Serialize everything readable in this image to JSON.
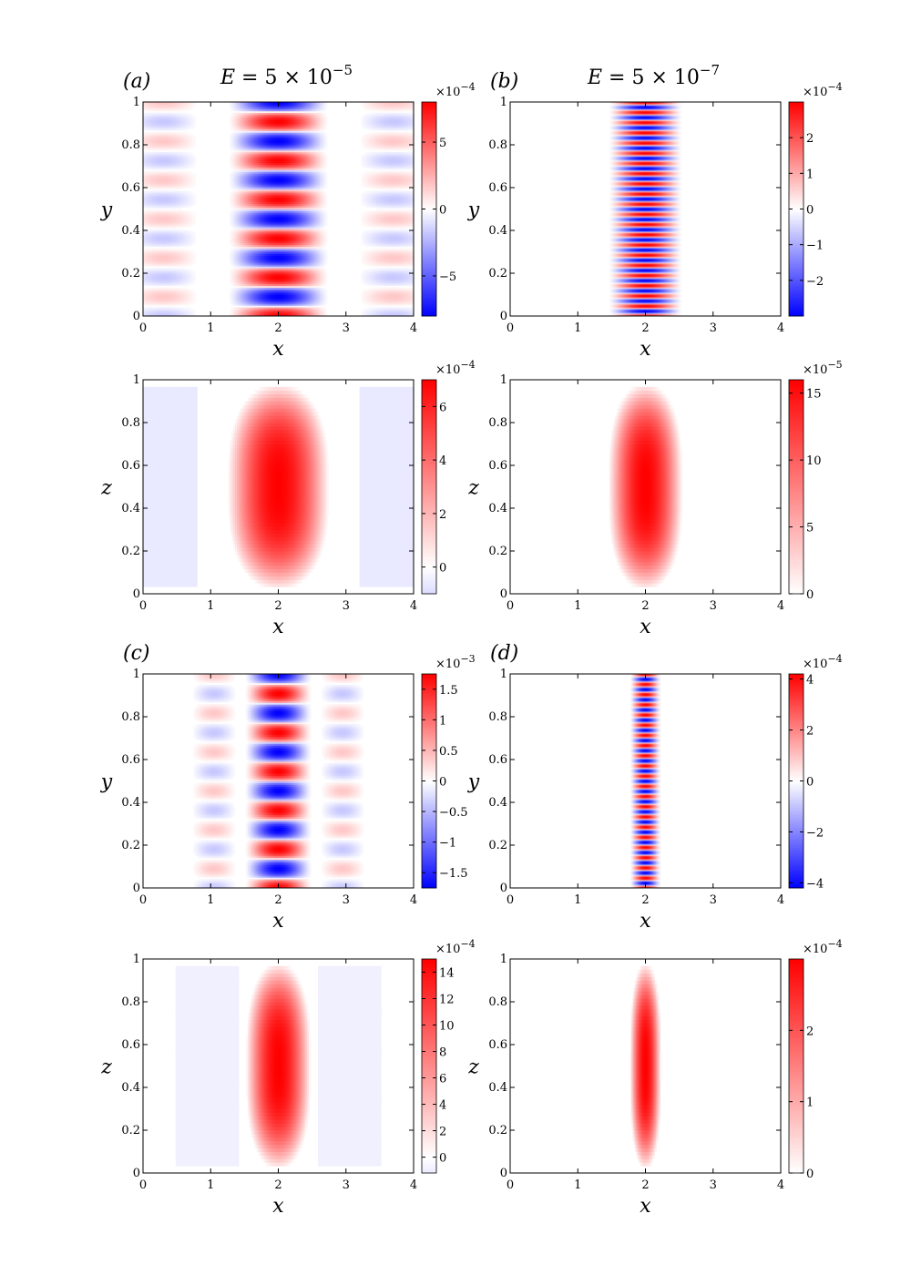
{
  "chart_data": [
    {
      "type": "heatmap",
      "panel_label": "(a)",
      "title": "E = 5 × 10^−5",
      "xlabel": "x",
      "ylabel": "y",
      "xlim": [
        0,
        4
      ],
      "ylim": [
        0,
        1
      ],
      "xticks": [
        "0",
        "1",
        "2",
        "3",
        "4"
      ],
      "yticks": [
        "0",
        "0.2",
        "0.4",
        "0.6",
        "0.8",
        "1"
      ],
      "colorbar": {
        "exponent": "×10−4",
        "ticks": [
          -5,
          0,
          5
        ],
        "tick_labels": [
          "−5",
          "0",
          "5"
        ],
        "range": [
          -8,
          8
        ],
        "colormap": "blue-white-red"
      },
      "field": {
        "pattern": "stripes",
        "center": 2,
        "width": 0.75,
        "wavenumber": 11,
        "side_amplitude": 0.22,
        "side_offset": 1.7,
        "side_width": 0.55
      }
    },
    {
      "type": "heatmap",
      "panel_label": "(b)",
      "title": "E = 5 × 10^−7",
      "xlabel": "x",
      "ylabel": "y",
      "xlim": [
        0,
        4
      ],
      "ylim": [
        0,
        1
      ],
      "xticks": [
        "0",
        "1",
        "2",
        "3",
        "4"
      ],
      "yticks": [
        "0",
        "0.2",
        "0.4",
        "0.6",
        "0.8",
        "1"
      ],
      "colorbar": {
        "exponent": "×10−4",
        "ticks": [
          -2,
          -1,
          0,
          1,
          2
        ],
        "tick_labels": [
          "−2",
          "−1",
          "0",
          "1",
          "2"
        ],
        "range": [
          -3,
          3
        ],
        "colormap": "blue-white-red"
      },
      "field": {
        "pattern": "stripes",
        "center": 2,
        "width": 0.55,
        "wavenumber": 42,
        "side_amplitude": 0,
        "side_offset": 0,
        "side_width": 0.5
      }
    },
    {
      "type": "heatmap",
      "panel_label": "",
      "title": "",
      "xlabel": "x",
      "ylabel": "z",
      "xlim": [
        0,
        4
      ],
      "ylim": [
        0,
        1
      ],
      "xticks": [
        "0",
        "1",
        "2",
        "3",
        "4"
      ],
      "yticks": [
        "0",
        "0.2",
        "0.4",
        "0.6",
        "0.8",
        "1"
      ],
      "colorbar": {
        "exponent": "×10−4",
        "ticks": [
          0,
          2,
          4,
          6
        ],
        "tick_labels": [
          "0",
          "2",
          "4",
          "6"
        ],
        "range": [
          -1,
          7
        ],
        "colormap": "blue-white-red"
      },
      "field": {
        "pattern": "blob",
        "center": 2,
        "width": 0.75,
        "peak": 7,
        "side_amplitude": -0.6,
        "side_offset": 1.7,
        "side_width": 0.55
      }
    },
    {
      "type": "heatmap",
      "panel_label": "",
      "title": "",
      "xlabel": "x",
      "ylabel": "z",
      "xlim": [
        0,
        4
      ],
      "ylim": [
        0,
        1
      ],
      "xticks": [
        "0",
        "1",
        "2",
        "3",
        "4"
      ],
      "yticks": [
        "0",
        "0.2",
        "0.4",
        "0.6",
        "0.8",
        "1"
      ],
      "colorbar": {
        "exponent": "×10−5",
        "ticks": [
          0,
          5,
          10,
          15
        ],
        "tick_labels": [
          "0",
          "5",
          "10",
          "15"
        ],
        "range": [
          0,
          16
        ],
        "colormap": "white-red"
      },
      "field": {
        "pattern": "blob",
        "center": 2,
        "width": 0.55,
        "peak": 16,
        "side_amplitude": 0,
        "side_offset": 0,
        "side_width": 0.5
      }
    },
    {
      "type": "heatmap",
      "panel_label": "(c)",
      "title": "",
      "xlabel": "x",
      "ylabel": "y",
      "xlim": [
        0,
        4
      ],
      "ylim": [
        0,
        1
      ],
      "xticks": [
        "0",
        "1",
        "2",
        "3",
        "4"
      ],
      "yticks": [
        "0",
        "0.2",
        "0.4",
        "0.6",
        "0.8",
        "1"
      ],
      "colorbar": {
        "exponent": "×10−3",
        "ticks": [
          -1.5,
          -1,
          -0.5,
          0,
          0.5,
          1,
          1.5
        ],
        "tick_labels": [
          "−1.5",
          "−1",
          "−0.5",
          "0",
          "0.5",
          "1",
          "1.5"
        ],
        "range": [
          -1.75,
          1.75
        ],
        "colormap": "blue-white-red"
      },
      "field": {
        "pattern": "stripes",
        "center": 2,
        "width": 0.5,
        "wavenumber": 11,
        "side_amplitude": 0.22,
        "side_offset": 0.95,
        "side_width": 0.35
      }
    },
    {
      "type": "heatmap",
      "panel_label": "(d)",
      "title": "",
      "xlabel": "x",
      "ylabel": "y",
      "xlim": [
        0,
        4
      ],
      "ylim": [
        0,
        1
      ],
      "xticks": [
        "0",
        "1",
        "2",
        "3",
        "4"
      ],
      "yticks": [
        "0",
        "0.2",
        "0.4",
        "0.6",
        "0.8",
        "1"
      ],
      "colorbar": {
        "exponent": "×10−4",
        "ticks": [
          -4,
          -2,
          0,
          2,
          4
        ],
        "tick_labels": [
          "−4",
          "−2",
          "0",
          "2",
          "4"
        ],
        "range": [
          -4.2,
          4.2
        ],
        "colormap": "blue-white-red"
      },
      "field": {
        "pattern": "stripes",
        "center": 2,
        "width": 0.23,
        "wavenumber": 42,
        "side_amplitude": 0,
        "side_offset": 0,
        "side_width": 0.3
      }
    },
    {
      "type": "heatmap",
      "panel_label": "",
      "title": "",
      "xlabel": "x",
      "ylabel": "z",
      "xlim": [
        0,
        4
      ],
      "ylim": [
        0,
        1
      ],
      "xticks": [
        "0",
        "1",
        "2",
        "3",
        "4"
      ],
      "yticks": [
        "0",
        "0.2",
        "0.4",
        "0.6",
        "0.8",
        "1"
      ],
      "colorbar": {
        "exponent": "×10−4",
        "ticks": [
          0,
          2,
          4,
          6,
          8,
          10,
          12,
          14
        ],
        "tick_labels": [
          "0",
          "2",
          "4",
          "6",
          "8",
          "10",
          "12",
          "14"
        ],
        "range": [
          -1.2,
          15
        ],
        "colormap": "blue-white-red"
      },
      "field": {
        "pattern": "blob",
        "center": 2,
        "width": 0.48,
        "peak": 15,
        "side_amplitude": -0.9,
        "side_offset": 1.05,
        "side_width": 0.5
      }
    },
    {
      "type": "heatmap",
      "panel_label": "",
      "title": "",
      "xlabel": "x",
      "ylabel": "z",
      "xlim": [
        0,
        4
      ],
      "ylim": [
        0,
        1
      ],
      "xticks": [
        "0",
        "1",
        "2",
        "3",
        "4"
      ],
      "yticks": [
        "0",
        "0.2",
        "0.4",
        "0.6",
        "0.8",
        "1"
      ],
      "colorbar": {
        "exponent": "×10−4",
        "ticks": [
          0,
          1,
          2
        ],
        "tick_labels": [
          "0",
          "1",
          "2"
        ],
        "range": [
          0,
          3
        ],
        "colormap": "white-red"
      },
      "field": {
        "pattern": "blob",
        "center": 2,
        "width": 0.23,
        "peak": 3,
        "side_amplitude": 0,
        "side_offset": 0,
        "side_width": 0.3
      }
    }
  ]
}
